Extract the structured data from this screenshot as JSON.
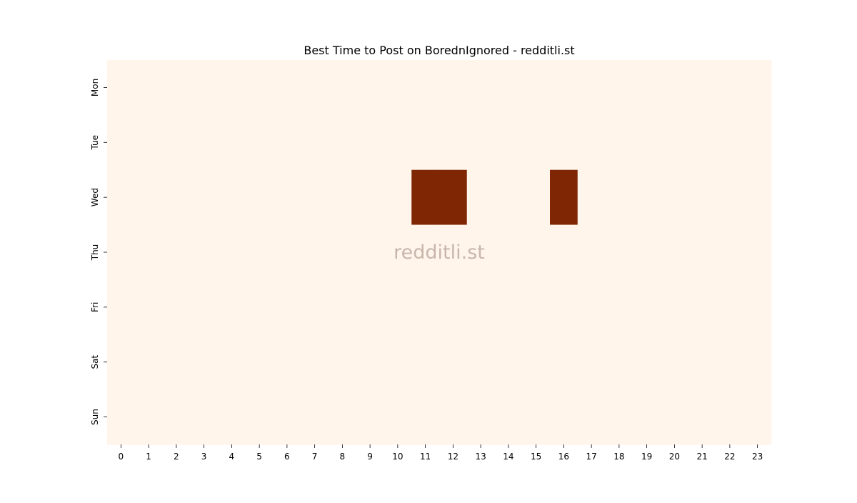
{
  "chart_data": {
    "type": "heatmap",
    "title": "Best Time to Post on BorednIgnored - redditli.st",
    "watermark": "redditli.st",
    "xlabel": "",
    "ylabel": "",
    "x_categories": [
      "0",
      "1",
      "2",
      "3",
      "4",
      "5",
      "6",
      "7",
      "8",
      "9",
      "10",
      "11",
      "12",
      "13",
      "14",
      "15",
      "16",
      "17",
      "18",
      "19",
      "20",
      "21",
      "22",
      "23"
    ],
    "y_categories": [
      "Mon",
      "Tue",
      "Wed",
      "Thu",
      "Fri",
      "Sat",
      "Sun"
    ],
    "colormap": {
      "low": "#fff5eb",
      "high": "#7f2704"
    },
    "values": [
      [
        0,
        0,
        0,
        0,
        0,
        0,
        0,
        0,
        0,
        0,
        0,
        0,
        0,
        0,
        0,
        0,
        0,
        0,
        0,
        0,
        0,
        0,
        0,
        0
      ],
      [
        0,
        0,
        0,
        0,
        0,
        0,
        0,
        0,
        0,
        0,
        0,
        0,
        0,
        0,
        0,
        0,
        0,
        0,
        0,
        0,
        0,
        0,
        0,
        0
      ],
      [
        0,
        0,
        0,
        0,
        0,
        0,
        0,
        0,
        0,
        0,
        0,
        1,
        1,
        0,
        0,
        0,
        1,
        0,
        0,
        0,
        0,
        0,
        0,
        0
      ],
      [
        0,
        0,
        0,
        0,
        0,
        0,
        0,
        0,
        0,
        0,
        0,
        0,
        0,
        0,
        0,
        0,
        0,
        0,
        0,
        0,
        0,
        0,
        0,
        0
      ],
      [
        0,
        0,
        0,
        0,
        0,
        0,
        0,
        0,
        0,
        0,
        0,
        0,
        0,
        0,
        0,
        0,
        0,
        0,
        0,
        0,
        0,
        0,
        0,
        0
      ],
      [
        0,
        0,
        0,
        0,
        0,
        0,
        0,
        0,
        0,
        0,
        0,
        0,
        0,
        0,
        0,
        0,
        0,
        0,
        0,
        0,
        0,
        0,
        0,
        0
      ],
      [
        0,
        0,
        0,
        0,
        0,
        0,
        0,
        0,
        0,
        0,
        0,
        0,
        0,
        0,
        0,
        0,
        0,
        0,
        0,
        0,
        0,
        0,
        0,
        0
      ]
    ],
    "grid": false,
    "legend": "none"
  }
}
